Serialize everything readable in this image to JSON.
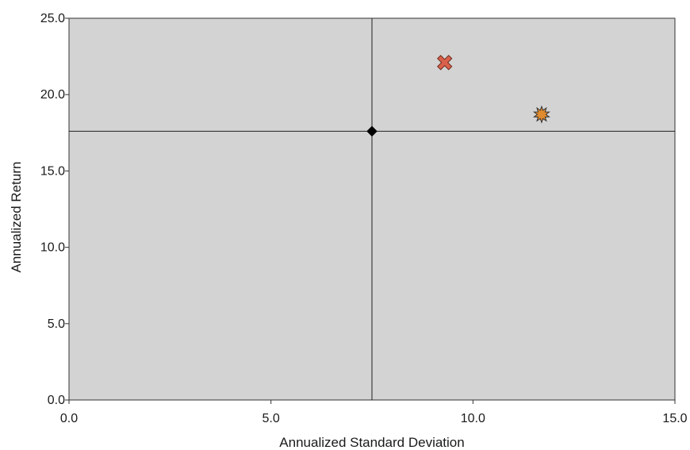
{
  "chart_data": {
    "type": "scatter",
    "title": "",
    "xlabel": "Annualized Standard Deviation",
    "ylabel": "Annualized Return",
    "xlim": [
      0,
      15
    ],
    "ylim": [
      0,
      25
    ],
    "x_ticks": [
      "0.0",
      "5.0",
      "10.0",
      "15.0"
    ],
    "y_ticks": [
      "0.0",
      "5.0",
      "10.0",
      "15.0",
      "20.0",
      "25.0"
    ],
    "grid": false,
    "plot_background": "#d3d3d3",
    "reference_lines": {
      "x": 7.5,
      "y": 17.6
    },
    "points": [
      {
        "x": 7.5,
        "y": 17.6,
        "marker": "diamond",
        "color": "#000000"
      },
      {
        "x": 9.3,
        "y": 22.1,
        "marker": "x",
        "color": "#d9604a"
      },
      {
        "x": 11.7,
        "y": 18.7,
        "marker": "star",
        "color": "#e08a2e"
      }
    ]
  }
}
